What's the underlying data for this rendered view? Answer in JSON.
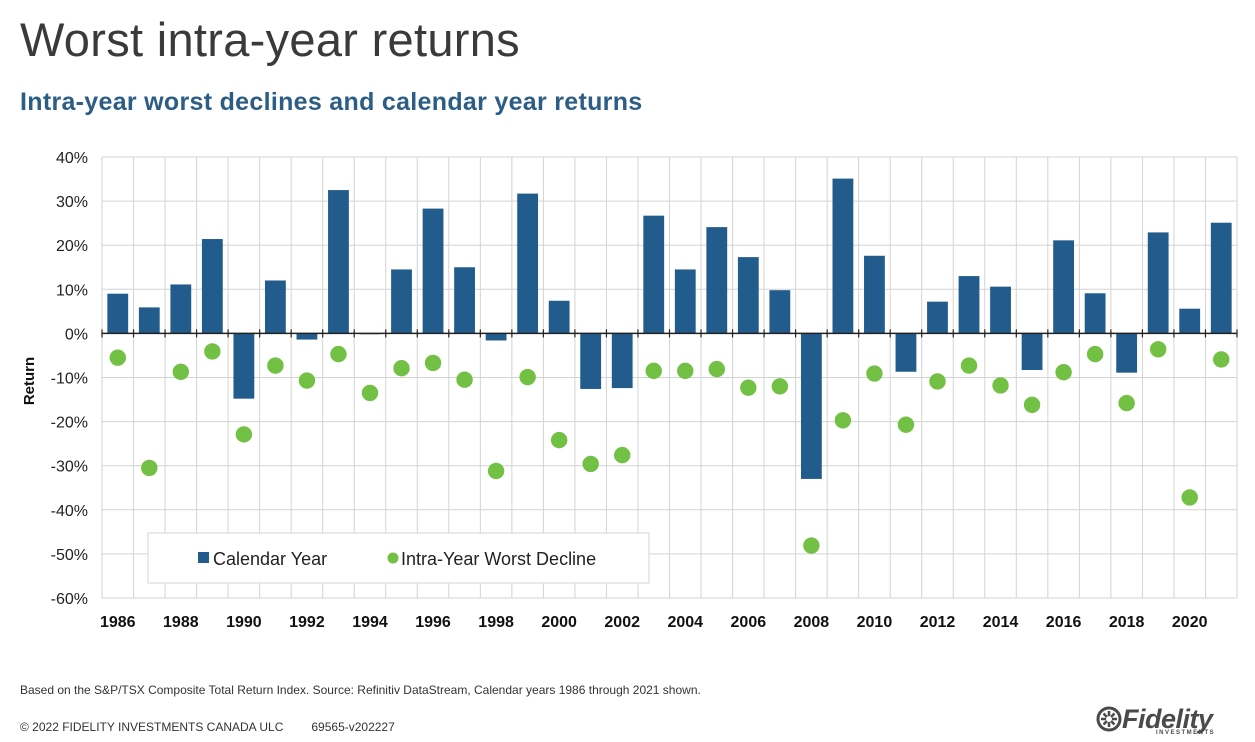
{
  "header": {
    "title": "Worst intra-year returns",
    "subtitle": "Intra-year worst declines and calendar year returns"
  },
  "footer": {
    "footnote": "Based on the S&P/TSX Composite Total Return Index. Source: Refinitiv DataStream, Calendar years 1986 through 2021 shown.",
    "copyright": "© 2022 FIDELITY INVESTMENTS CANADA ULC",
    "code": "69565-v202227",
    "logo_text": "Fidelity",
    "logo_subtext": "INVESTMENTS"
  },
  "colors": {
    "bar": "#225c8c",
    "dot": "#72c044",
    "grid": "#d3d3d3",
    "axis": "#222222"
  },
  "chart_data": {
    "type": "bar",
    "title": "Intra-year worst declines and calendar year returns",
    "xlabel": "",
    "ylabel": "Return",
    "ylim": [
      -60,
      40
    ],
    "yticks": [
      40,
      30,
      20,
      10,
      0,
      -10,
      -20,
      -30,
      -40,
      -50,
      -60
    ],
    "ytick_labels": [
      "40%",
      "30%",
      "20%",
      "10%",
      "0%",
      "-10%",
      "-20%",
      "-30%",
      "-40%",
      "-50%",
      "-60%"
    ],
    "categories": [
      "1986",
      "1987",
      "1988",
      "1989",
      "1990",
      "1991",
      "1992",
      "1993",
      "1994",
      "1995",
      "1996",
      "1997",
      "1998",
      "1999",
      "2000",
      "2001",
      "2002",
      "2003",
      "2004",
      "2005",
      "2006",
      "2007",
      "2008",
      "2009",
      "2010",
      "2011",
      "2012",
      "2013",
      "2014",
      "2015",
      "2016",
      "2017",
      "2018",
      "2019",
      "2020",
      "2021"
    ],
    "xtick_labels": [
      "1986",
      "1988",
      "1990",
      "1992",
      "1994",
      "1996",
      "1998",
      "2000",
      "2002",
      "2004",
      "2006",
      "2008",
      "2010",
      "2012",
      "2014",
      "2016",
      "2018",
      "2020"
    ],
    "grid": true,
    "legend_position": "bottom-left",
    "series": [
      {
        "name": "Calendar Year",
        "kind": "bar",
        "values": [
          9.0,
          5.9,
          11.1,
          21.4,
          -14.8,
          12.0,
          -1.4,
          32.5,
          -0.2,
          14.5,
          28.3,
          15.0,
          -1.6,
          31.7,
          7.4,
          -12.6,
          -12.4,
          26.7,
          14.5,
          24.1,
          17.3,
          9.8,
          -33.0,
          35.1,
          17.6,
          -8.7,
          7.2,
          13.0,
          10.6,
          -8.3,
          21.1,
          9.1,
          -8.9,
          22.9,
          5.6,
          25.1
        ]
      },
      {
        "name": "Intra-Year Worst Decline",
        "kind": "scatter",
        "values": [
          -5.5,
          -30.5,
          -8.7,
          -4.1,
          -22.9,
          -7.3,
          -10.7,
          -4.7,
          -13.5,
          -7.9,
          -6.7,
          -10.5,
          -31.2,
          -9.9,
          -24.2,
          -29.6,
          -27.6,
          -8.5,
          -8.5,
          -8.1,
          -12.3,
          -12.0,
          -48.1,
          -19.7,
          -9.1,
          -20.7,
          -10.9,
          -7.3,
          -11.8,
          -16.2,
          -8.8,
          -4.7,
          -15.8,
          -3.6,
          -37.2,
          -5.9
        ]
      }
    ]
  }
}
